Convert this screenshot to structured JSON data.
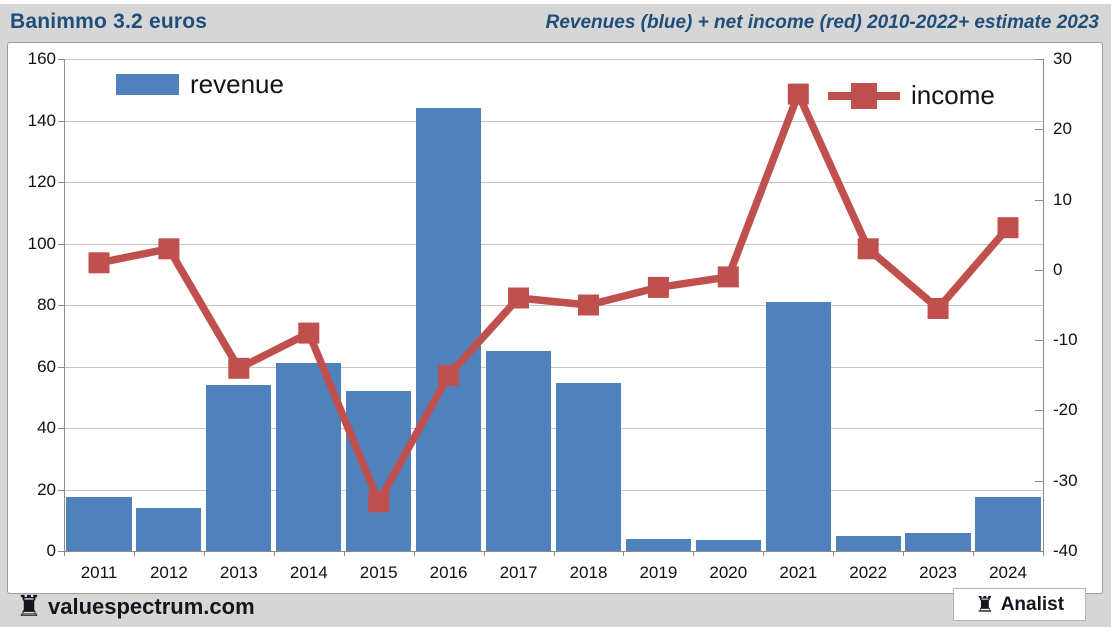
{
  "header": {
    "title": "Banimmo 3.2 euros",
    "subtitle": "Revenues (blue) + net income (red) 2010-2022+ estimate 2023"
  },
  "chart_data": {
    "type": "bar+line combo",
    "categories": [
      "2011",
      "2012",
      "2013",
      "2014",
      "2015",
      "2016",
      "2017",
      "2018",
      "2019",
      "2020",
      "2021",
      "2022",
      "2023",
      "2024"
    ],
    "series": [
      {
        "name": "revenue",
        "type": "bar",
        "axis": "left",
        "color": "#4f81bd",
        "values": [
          17.5,
          14,
          54,
          61,
          52,
          144,
          65,
          54.5,
          4,
          3.5,
          81,
          5,
          6,
          17.5
        ]
      },
      {
        "name": "income",
        "type": "line",
        "axis": "right",
        "color": "#c0504d",
        "values": [
          1,
          3,
          -14,
          -9,
          -33,
          -15,
          -4,
          -5,
          -2.5,
          -1,
          25,
          3,
          -5.5,
          6
        ]
      }
    ],
    "left_axis": {
      "min": 0,
      "max": 160,
      "step": 20,
      "ticks": [
        "160",
        "140",
        "120",
        "100",
        "80",
        "60",
        "40",
        "20",
        "0"
      ]
    },
    "right_axis": {
      "min": -40,
      "max": 30,
      "step": 10,
      "ticks": [
        "30",
        "20",
        "10",
        "0",
        "-10",
        "-20",
        "-30",
        "-40"
      ]
    },
    "grid": true,
    "legend_position": "top-inside"
  },
  "footer": {
    "rook_icon": "♜",
    "brand": "valuespectrum.com",
    "analist_label": "Analist"
  },
  "colors": {
    "bar_blue": "#4f81bd",
    "line_red": "#c0504d",
    "header_blue": "#1f4e7a",
    "page_gray": "#d6d6d6",
    "gridline": "#c6c6c6",
    "axis": "#8c8c8c"
  }
}
